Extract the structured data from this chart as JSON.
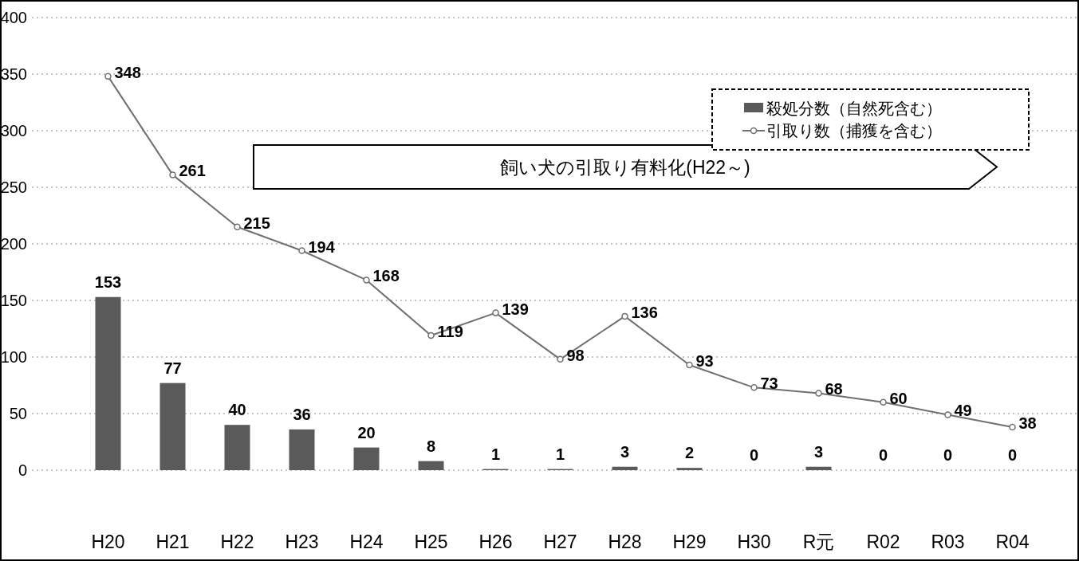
{
  "chart_data": {
    "type": "bar",
    "categories": [
      "H20",
      "H21",
      "H22",
      "H23",
      "H24",
      "H25",
      "H26",
      "H27",
      "H28",
      "H29",
      "H30",
      "R元",
      "R02",
      "R03",
      "R04"
    ],
    "series": [
      {
        "name": "殺処分数（自然死含む）",
        "color": "#5a5a5a",
        "values": [
          153,
          77,
          40,
          36,
          20,
          8,
          1,
          1,
          3,
          2,
          0,
          3,
          0,
          0,
          0
        ]
      },
      {
        "name": "引取り数（捕獲を含む）",
        "type": "line",
        "color": "#707070",
        "values": [
          348,
          261,
          215,
          194,
          168,
          119,
          139,
          98,
          136,
          93,
          73,
          68,
          60,
          49,
          38
        ]
      }
    ],
    "ylim": [
      0,
      400
    ],
    "yticks": [
      0,
      50,
      100,
      150,
      200,
      250,
      300,
      350,
      400
    ],
    "grid": "y",
    "legend": "top right",
    "marker": "circle",
    "line_style": "solid",
    "data_labels": true,
    "annotations": [
      "飼い犬の引取り有料化(H22～)"
    ]
  }
}
